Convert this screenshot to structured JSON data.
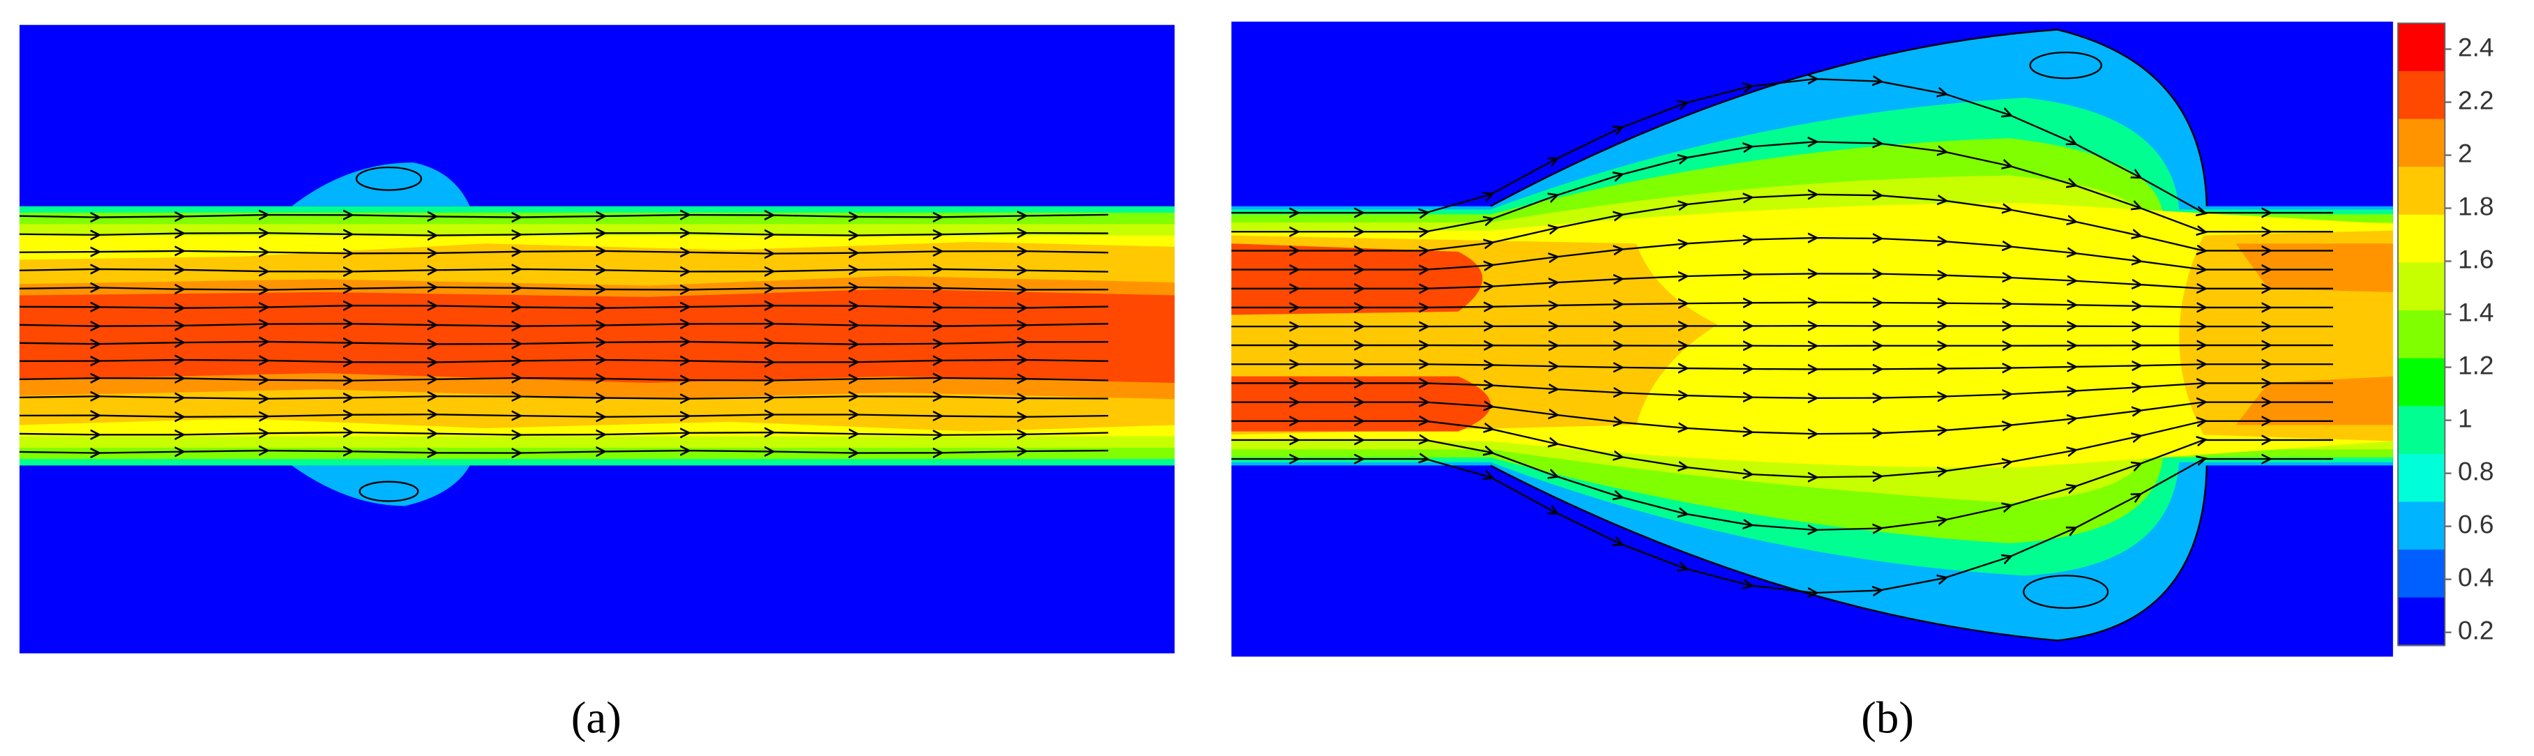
{
  "panels": [
    {
      "label": "(a)"
    },
    {
      "label": "(b)"
    }
  ],
  "colorbar": {
    "ticks": [
      2.4,
      2.2,
      2,
      1.8,
      1.6,
      1.4,
      1.2,
      1,
      0.8,
      0.6,
      0.4,
      0.2
    ],
    "range": [
      0.2,
      2.4
    ],
    "colors": [
      "#ff0000",
      "#ff4800",
      "#ff9400",
      "#ffc800",
      "#ffff00",
      "#c8ff00",
      "#80ff00",
      "#00ff00",
      "#00ff90",
      "#00ffd8",
      "#00b4ff",
      "#0060ff",
      "#0000ff"
    ]
  }
}
